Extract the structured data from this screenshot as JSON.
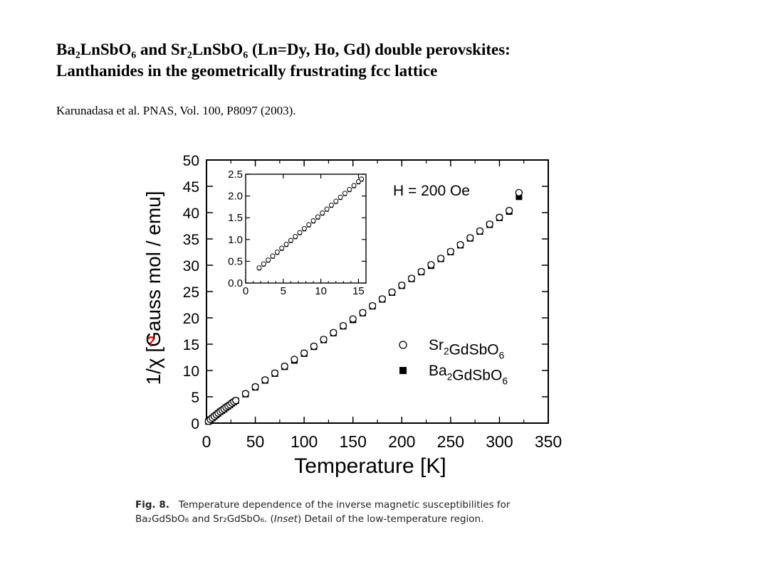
{
  "slide": {
    "title_line1": "Ba₂LnSbO₆ and Sr₂LnSbO₆ (Ln=Dy, Ho, Gd) double perovskites:",
    "title_line2": "Lanthanides in the geometrically frustrating fcc lattice",
    "citation": "Karunadasa et al. PNAS, Vol. 100, P8097 (2003)."
  },
  "caption": {
    "label": "Fig. 8.",
    "text_part1": "Temperature dependence of the inverse magnetic susceptibilities for",
    "compound1": "Ba₂GdSbO₆",
    "and": "and",
    "compound2": "Sr₂GdSbO₆.",
    "inset_open": "(",
    "inset_word": "Inset",
    "inset_rest": ") Detail of the low-temperature region."
  },
  "chart_data": [
    {
      "type": "scatter",
      "name": "main",
      "xlabel": "Temperature  [K]",
      "ylabel": "1/χ  [Gauss mol / emu]",
      "xlim": [
        0,
        350
      ],
      "ylim": [
        0,
        50
      ],
      "xticks": [
        0,
        50,
        100,
        150,
        200,
        250,
        300,
        350
      ],
      "yticks": [
        0,
        5,
        10,
        15,
        20,
        25,
        30,
        35,
        40,
        45,
        50
      ],
      "annotation": "H = 200 Oe",
      "marker_annotation": "?",
      "legend_position": "bottom-right",
      "series": [
        {
          "name": "Sr₂GdSbO₆",
          "marker": "open-circle",
          "x": [
            2,
            4,
            6,
            8,
            10,
            12,
            14,
            16,
            18,
            20,
            22,
            24,
            26,
            28,
            30,
            40,
            50,
            60,
            70,
            80,
            90,
            100,
            110,
            120,
            130,
            140,
            150,
            160,
            170,
            180,
            190,
            200,
            210,
            220,
            230,
            240,
            250,
            260,
            270,
            280,
            290,
            300,
            310,
            320
          ],
          "y": [
            0.35,
            0.7,
            1.0,
            1.3,
            1.6,
            1.9,
            2.2,
            2.45,
            2.7,
            3.0,
            3.25,
            3.5,
            3.8,
            4.05,
            4.3,
            5.6,
            6.9,
            8.2,
            9.5,
            10.8,
            12.1,
            13.3,
            14.6,
            15.9,
            17.2,
            18.5,
            19.8,
            21.0,
            22.3,
            23.6,
            24.9,
            26.2,
            27.5,
            28.8,
            30.1,
            31.3,
            32.6,
            33.9,
            35.2,
            36.5,
            37.8,
            39.1,
            40.4,
            43.8
          ]
        },
        {
          "name": "Ba₂GdSbO₆",
          "marker": "filled-square",
          "x": [
            2,
            4,
            6,
            8,
            10,
            12,
            14,
            16,
            18,
            20,
            22,
            24,
            26,
            28,
            30,
            40,
            50,
            60,
            70,
            80,
            90,
            100,
            110,
            120,
            130,
            140,
            150,
            160,
            170,
            180,
            190,
            200,
            210,
            220,
            230,
            240,
            250,
            260,
            270,
            280,
            290,
            300,
            310,
            320
          ],
          "y": [
            0.3,
            0.65,
            0.95,
            1.25,
            1.55,
            1.85,
            2.15,
            2.4,
            2.65,
            2.95,
            3.2,
            3.45,
            3.75,
            4.0,
            4.25,
            5.5,
            6.8,
            8.1,
            9.4,
            10.7,
            11.9,
            13.2,
            14.5,
            15.8,
            17.1,
            18.4,
            19.6,
            20.9,
            22.2,
            23.5,
            24.8,
            26.1,
            27.4,
            28.7,
            29.9,
            31.2,
            32.5,
            33.8,
            35.1,
            36.4,
            37.7,
            39.0,
            40.2,
            43.0
          ]
        }
      ]
    },
    {
      "type": "scatter",
      "name": "inset",
      "xlim": [
        0,
        16
      ],
      "ylim": [
        0,
        2.5
      ],
      "xticks": [
        0,
        5,
        10,
        15
      ],
      "yticks": [
        0.0,
        0.5,
        1.0,
        1.5,
        2.0,
        2.5
      ],
      "ytick_labels": [
        "0.0",
        "0.5",
        "1.0",
        "1.5",
        "2.0",
        "2.5"
      ],
      "series": [
        {
          "name": "Sr₂GdSbO₆",
          "marker": "open-circle",
          "x": [
            1.8,
            2.4,
            3.0,
            3.6,
            4.2,
            4.8,
            5.4,
            6.0,
            6.6,
            7.2,
            7.8,
            8.4,
            9.0,
            9.6,
            10.2,
            10.8,
            11.4,
            12.0,
            12.6,
            13.2,
            13.8,
            14.4,
            15.0,
            15.4
          ],
          "y": [
            0.35,
            0.44,
            0.53,
            0.62,
            0.71,
            0.8,
            0.89,
            0.98,
            1.07,
            1.16,
            1.25,
            1.34,
            1.43,
            1.52,
            1.61,
            1.7,
            1.79,
            1.88,
            1.97,
            2.06,
            2.15,
            2.24,
            2.33,
            2.39
          ]
        },
        {
          "name": "Ba₂GdSbO₆",
          "marker": "filled-square",
          "x": [
            1.8,
            2.4,
            3.0,
            3.6,
            4.2,
            4.8,
            5.4,
            6.0,
            6.6,
            7.2,
            7.8,
            8.4,
            9.0,
            9.6,
            10.2,
            10.8,
            11.4,
            12.0,
            12.6,
            13.2,
            13.8,
            14.4,
            15.0,
            15.4
          ],
          "y": [
            0.33,
            0.42,
            0.51,
            0.6,
            0.69,
            0.78,
            0.87,
            0.96,
            1.05,
            1.14,
            1.23,
            1.32,
            1.41,
            1.5,
            1.59,
            1.68,
            1.77,
            1.86,
            1.95,
            2.04,
            2.13,
            2.22,
            2.31,
            2.37
          ]
        }
      ]
    }
  ]
}
